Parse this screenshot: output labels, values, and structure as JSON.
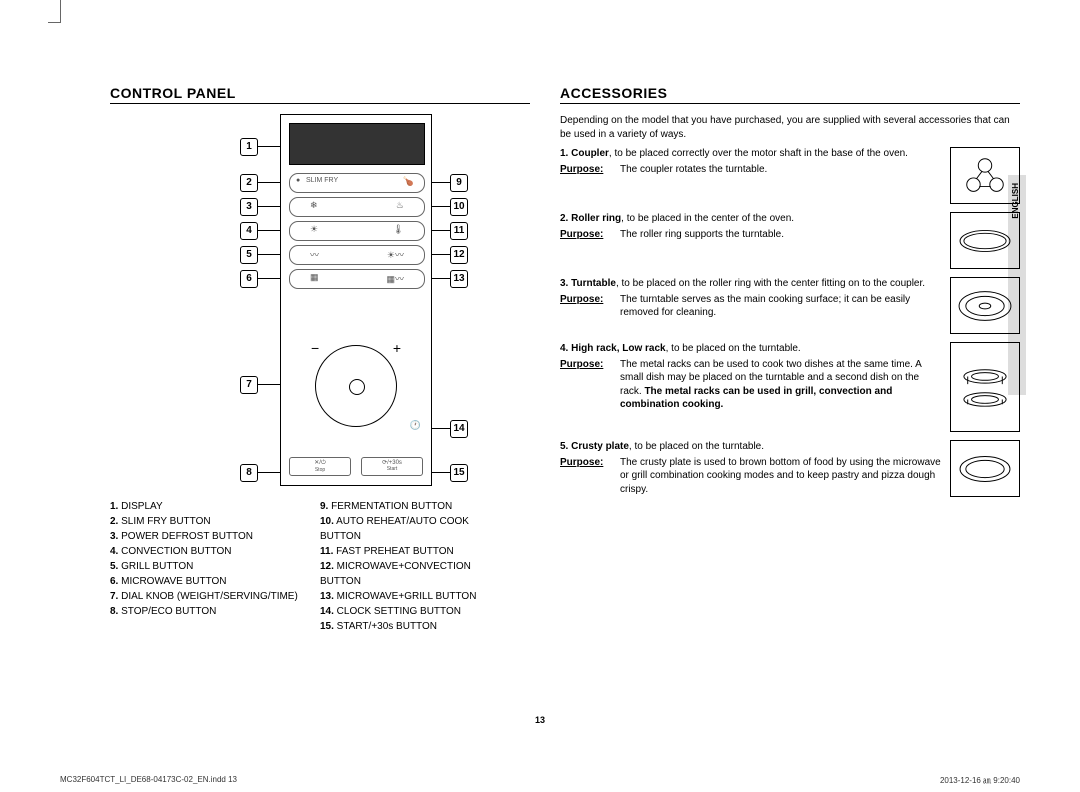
{
  "language_tab": "ENGLISH",
  "page_number": "13",
  "footer_left": "MC32F604TCT_LI_DE68-04173C-02_EN.indd   13",
  "footer_right": "2013-12-16   ㏂ 9:20:40",
  "control_panel": {
    "title": "CONTROL PANEL",
    "callouts_left": [
      1,
      2,
      3,
      4,
      5,
      6,
      7,
      8
    ],
    "callouts_right": [
      9,
      10,
      11,
      12,
      13,
      14,
      15
    ],
    "knob": {
      "minus": "−",
      "plus": "+"
    },
    "bottom_labels": {
      "left": "Stop",
      "right": "Start",
      "right_icon": "⟳/+30s",
      "left_icon": "✕/⏻"
    },
    "slimfry_label": "SLIM FRY",
    "legend_left": [
      {
        "n": "1.",
        "t": "DISPLAY"
      },
      {
        "n": "2.",
        "t": "SLIM FRY BUTTON"
      },
      {
        "n": "3.",
        "t": "POWER DEFROST BUTTON"
      },
      {
        "n": "4.",
        "t": "CONVECTION BUTTON"
      },
      {
        "n": "5.",
        "t": "GRILL BUTTON"
      },
      {
        "n": "6.",
        "t": "MICROWAVE BUTTON"
      },
      {
        "n": "7.",
        "t": "DIAL KNOB (WEIGHT/SERVING/TIME)"
      },
      {
        "n": "8.",
        "t": "STOP/ECO BUTTON"
      }
    ],
    "legend_right": [
      {
        "n": "9.",
        "t": "FERMENTATION BUTTON"
      },
      {
        "n": "10.",
        "t": "AUTO REHEAT/AUTO COOK BUTTON"
      },
      {
        "n": "11.",
        "t": "FAST PREHEAT BUTTON"
      },
      {
        "n": "12.",
        "t": "MICROWAVE+CONVECTION BUTTON"
      },
      {
        "n": "13.",
        "t": "MICROWAVE+GRILL BUTTON"
      },
      {
        "n": "14.",
        "t": "CLOCK SETTING BUTTON"
      },
      {
        "n": "15.",
        "t": "START/+30s BUTTON"
      }
    ]
  },
  "accessories": {
    "title": "ACCESSORIES",
    "intro": "Depending on the model that you have purchased, you are supplied with several accessories that can be used in a variety of ways.",
    "purpose_label": "Purpose:",
    "items": [
      {
        "n": "1.",
        "name": "Coupler",
        "desc": ", to be placed correctly over the motor shaft in the base of the oven.",
        "purpose": "The coupler rotates the turntable.",
        "icon": "coupler"
      },
      {
        "n": "2.",
        "name": "Roller ring",
        "desc": ", to be placed in the center of the oven.",
        "purpose": "The roller ring supports the turntable.",
        "icon": "ring"
      },
      {
        "n": "3.",
        "name": "Turntable",
        "desc": ", to be placed on the roller ring with the center fitting on to the coupler.",
        "purpose": "The turntable serves as the main cooking surface; it can be easily removed for cleaning.",
        "icon": "turntable"
      },
      {
        "n": "4.",
        "name": "High rack, Low rack",
        "desc": ", to be placed on the turntable.",
        "purpose": "The metal racks can be used to cook two dishes at the same time. A small dish may be placed on the turntable and a second dish on the rack. ",
        "purpose_bold": "The metal racks can be used in grill, convection and combination cooking.",
        "icon": "racks"
      },
      {
        "n": "5.",
        "name": "Crusty plate",
        "desc": ", to be placed on the turntable.",
        "purpose": "The crusty plate is used to brown bottom of food by using the microwave or grill combination cooking modes and to keep pastry and pizza dough crispy.",
        "icon": "crusty"
      }
    ]
  }
}
